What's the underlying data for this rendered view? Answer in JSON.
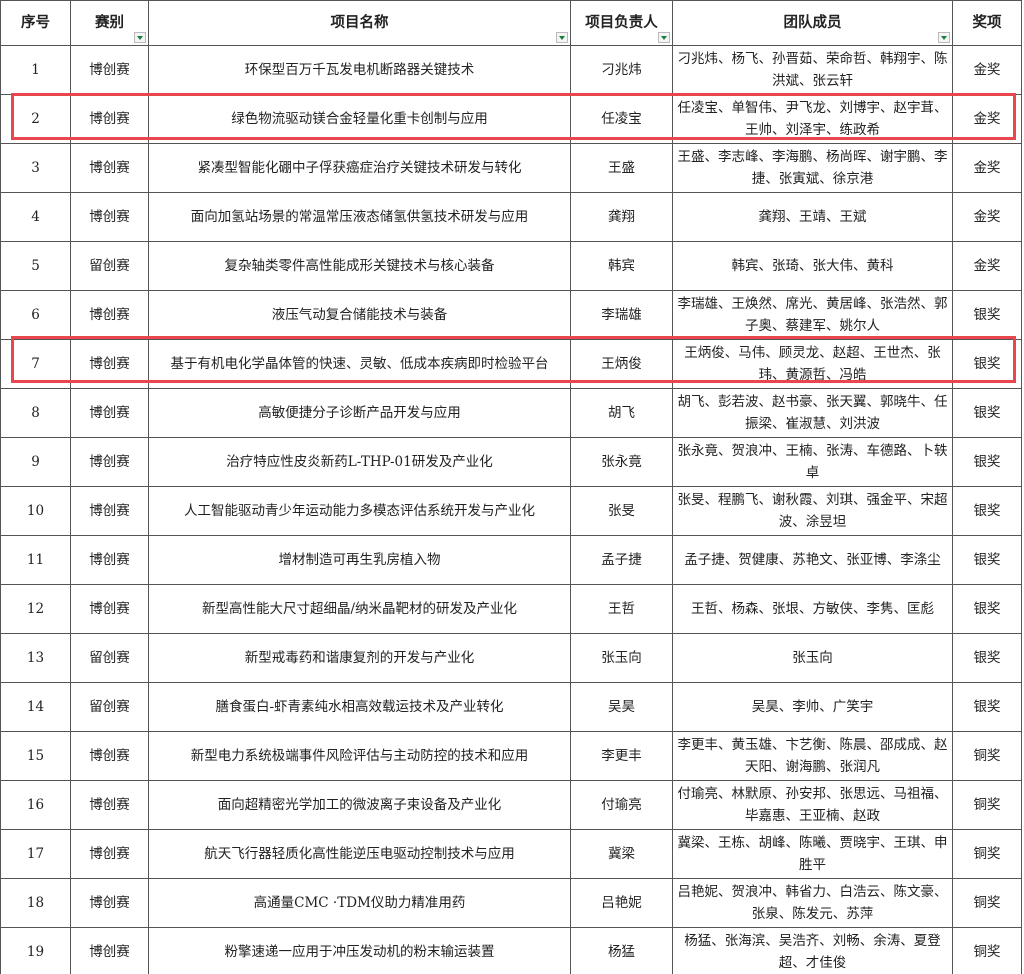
{
  "headers": [
    "序号",
    "赛别",
    "项目名称",
    "项目负责人",
    "团队成员",
    "奖项"
  ],
  "filter_columns": [
    1,
    2,
    3,
    4
  ],
  "highlight_color": "#e8474e",
  "filter_icon_color": "#1a7f3c",
  "highlighted_rows": [
    "2",
    "7"
  ],
  "rows": [
    [
      "1",
      "博创赛",
      "环保型百万千瓦发电机断路器关键技术",
      "刁兆炜",
      "刁兆炜、杨飞、孙晋茹、荣命哲、韩翔宇、陈洪斌、张云轩",
      "金奖"
    ],
    [
      "2",
      "博创赛",
      "绿色物流驱动镁合金轻量化重卡创制与应用",
      "任凌宝",
      "任凌宝、单智伟、尹飞龙、刘博宇、赵宇茸、王帅、刘泽宇、练政希",
      "金奖"
    ],
    [
      "3",
      "博创赛",
      "紧凑型智能化硼中子俘获癌症治疗关键技术研发与转化",
      "王盛",
      "王盛、李志峰、李海鹏、杨尚晖、谢宇鹏、李捷、张寅斌、徐京港",
      "金奖"
    ],
    [
      "4",
      "博创赛",
      "面向加氢站场景的常温常压液态储氢供氢技术研发与应用",
      "龚翔",
      "龚翔、王靖、王斌",
      "金奖"
    ],
    [
      "5",
      "留创赛",
      "复杂轴类零件高性能成形关键技术与核心装备",
      "韩宾",
      "韩宾、张琦、张大伟、黄科",
      "金奖"
    ],
    [
      "6",
      "博创赛",
      "液压气动复合储能技术与装备",
      "李瑞雄",
      "李瑞雄、王焕然、席光、黄居峰、张浩然、郭子奥、蔡建军、姚尔人",
      "银奖"
    ],
    [
      "7",
      "博创赛",
      "基于有机电化学晶体管的快速、灵敏、低成本疾病即时检验平台",
      "王炳俊",
      "王炳俊、马伟、顾灵龙、赵超、王世杰、张玮、黄源哲、冯皓",
      "银奖"
    ],
    [
      "8",
      "博创赛",
      "高敏便捷分子诊断产品开发与应用",
      "胡飞",
      "胡飞、彭若波、赵书豪、张天翼、郭晓牛、任振梁、崔淑慧、刘洪波",
      "银奖"
    ],
    [
      "9",
      "博创赛",
      "治疗特应性皮炎新药L-THP-01研发及产业化",
      "张永竟",
      "张永竟、贺浪冲、王楠、张涛、车德路、卜轶卓",
      "银奖"
    ],
    [
      "10",
      "博创赛",
      "人工智能驱动青少年运动能力多模态评估系统开发与产业化",
      "张旻",
      "张旻、程鹏飞、谢秋霞、刘琪、强金平、宋超波、涂昱坦",
      "银奖"
    ],
    [
      "11",
      "博创赛",
      "增材制造可再生乳房植入物",
      "孟子捷",
      "孟子捷、贺健康、苏艳文、张亚博、李涤尘",
      "银奖"
    ],
    [
      "12",
      "博创赛",
      "新型高性能大尺寸超细晶/纳米晶靶材的研发及产业化",
      "王哲",
      "王哲、杨森、张垠、方敏侠、李隽、匡彪",
      "银奖"
    ],
    [
      "13",
      "留创赛",
      "新型戒毒药和谐康复剂的开发与产业化",
      "张玉向",
      "张玉向",
      "银奖"
    ],
    [
      "14",
      "留创赛",
      "膳食蛋白-虾青素纯水相高效载运技术及产业转化",
      "吴昊",
      "吴昊、李帅、广笑宇",
      "银奖"
    ],
    [
      "15",
      "博创赛",
      "新型电力系统极端事件风险评估与主动防控的技术和应用",
      "李更丰",
      "李更丰、黄玉雄、卞艺衡、陈晨、邵成成、赵天阳、谢海鹏、张润凡",
      "铜奖"
    ],
    [
      "16",
      "博创赛",
      "面向超精密光学加工的微波离子束设备及产业化",
      "付瑜亮",
      "付瑜亮、林默原、孙安邦、张思远、马祖福、毕嘉惠、王亚楠、赵政",
      "铜奖"
    ],
    [
      "17",
      "博创赛",
      "航天飞行器轻质化高性能逆压电驱动控制技术与应用",
      "冀梁",
      "冀梁、王栋、胡峰、陈曦、贾晓宇、王琪、申胜平",
      "铜奖"
    ],
    [
      "18",
      "博创赛",
      "高通量CMC ·TDM仪助力精准用药",
      "吕艳妮",
      "吕艳妮、贺浪冲、韩省力、白浩云、陈文豪、张泉、陈发元、苏萍",
      "铜奖"
    ],
    [
      "19",
      "博创赛",
      "粉擎速递一应用于冲压发动机的粉末输运装置",
      "杨猛",
      "杨猛、张海滨、吴浩齐、刘畅、余涛、夏登超、才佳俊",
      "铜奖"
    ]
  ]
}
